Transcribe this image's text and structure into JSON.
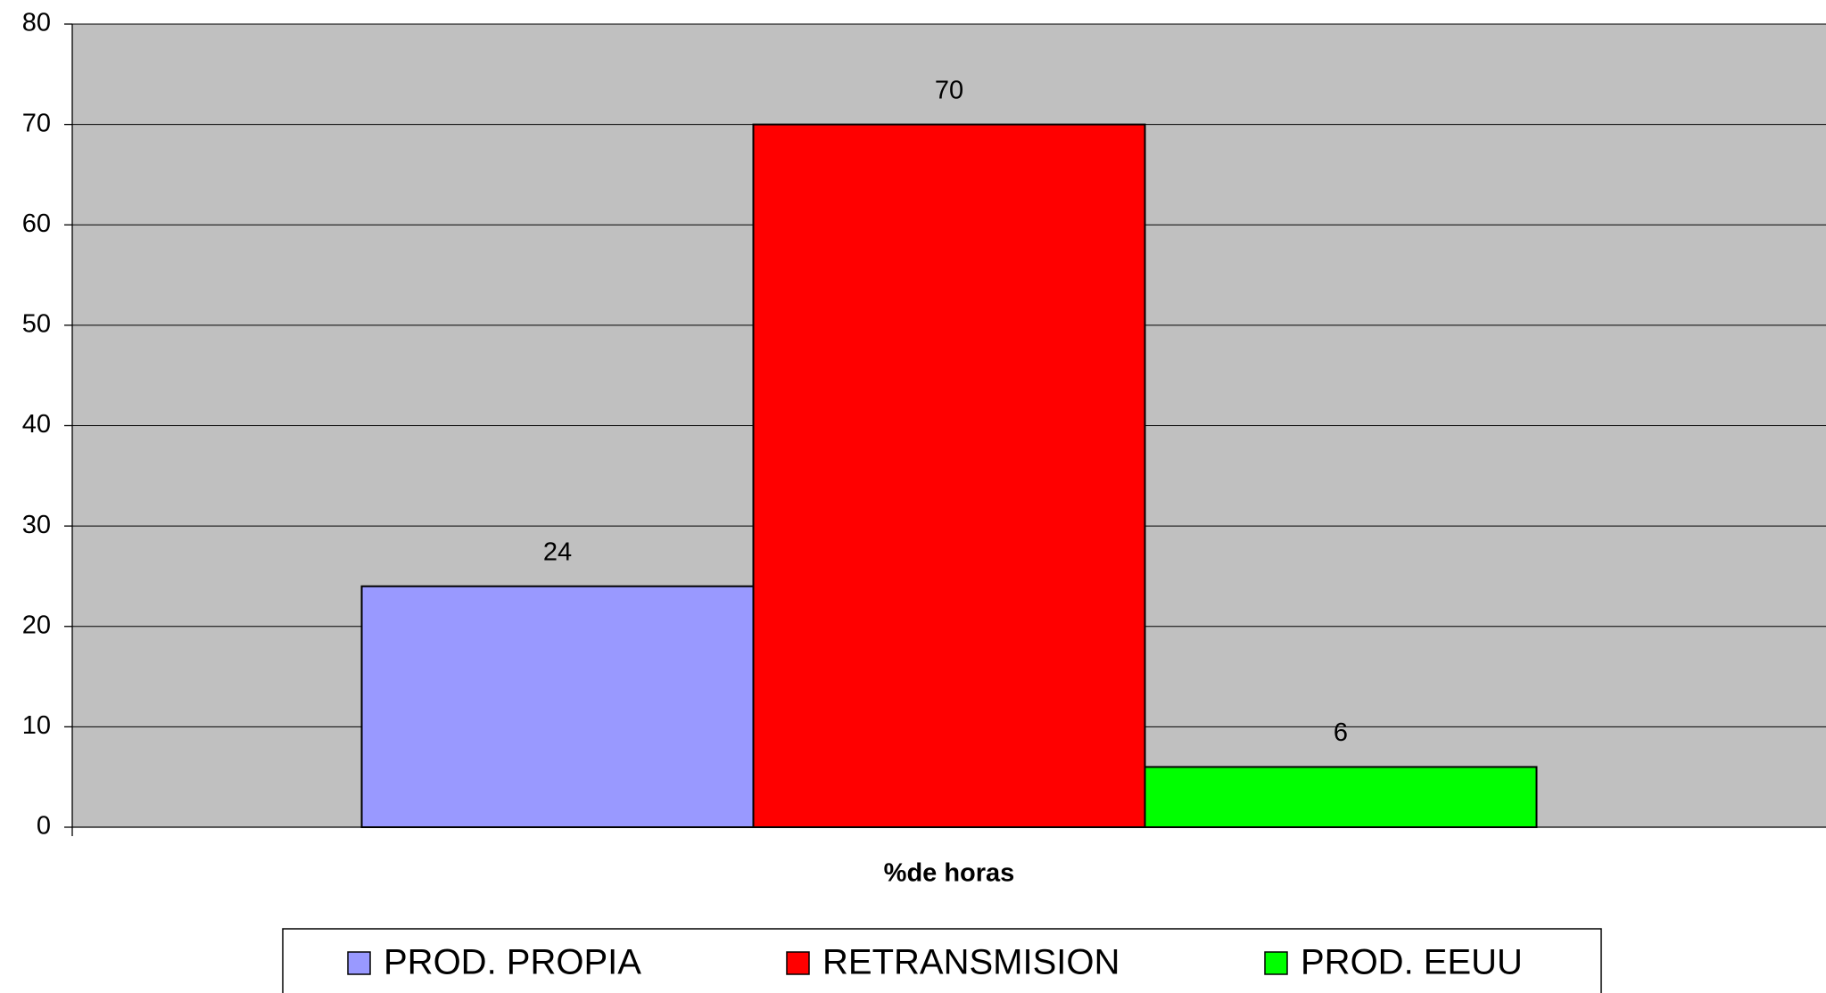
{
  "chart_data": {
    "type": "bar",
    "categories": [
      "%de horas"
    ],
    "series": [
      {
        "name": "PROD. PROPIA",
        "color": "#9999ff",
        "values": [
          24
        ]
      },
      {
        "name": "RETRANSMISION",
        "color": "#ff0000",
        "values": [
          70
        ]
      },
      {
        "name": "PROD. EEUU",
        "color": "#00ff00",
        "values": [
          6
        ]
      }
    ],
    "ylim": [
      0,
      80
    ],
    "yticks": [
      0,
      10,
      20,
      30,
      40,
      50,
      60,
      70,
      80
    ],
    "grid": true,
    "legend": "bottom",
    "plot_background": "#c0c0c0"
  }
}
